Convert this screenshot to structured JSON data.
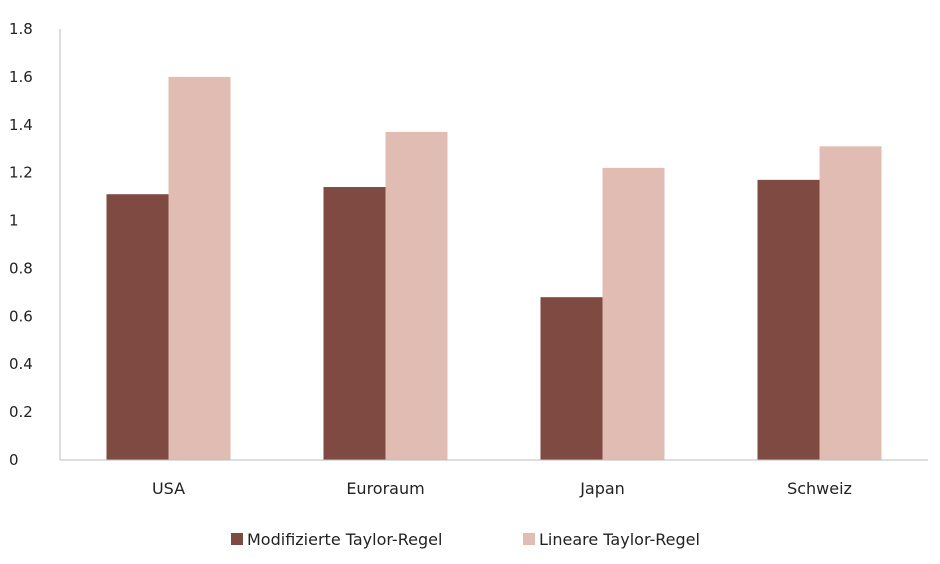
{
  "chart_data": {
    "type": "bar",
    "categories": [
      "USA",
      "Euroraum",
      "Japan",
      "Schweiz"
    ],
    "series": [
      {
        "name": "Modifizierte Taylor-Regel",
        "values": [
          1.11,
          1.14,
          0.68,
          1.17
        ],
        "color": "#7e4a41"
      },
      {
        "name": "Lineare Taylor-Regel",
        "values": [
          1.6,
          1.37,
          1.22,
          1.31
        ],
        "color": "#e0bcb2"
      }
    ],
    "ylim": [
      0,
      1.8
    ],
    "yticks": [
      "0",
      "0.2",
      "0.4",
      "0.6",
      "0.8",
      "1",
      "1.2",
      "1.4",
      "1.6",
      "1.8"
    ],
    "grid": false,
    "legend_position": "bottom"
  }
}
